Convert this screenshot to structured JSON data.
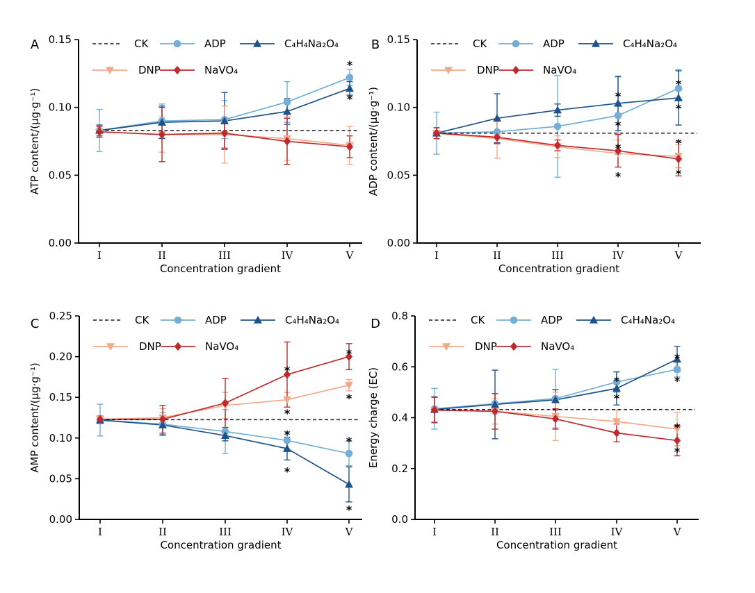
{
  "figure": {
    "background": "#ffffff",
    "axis_color": "#000000",
    "significance_symbol": "*",
    "xlabel": "Concentration gradient"
  },
  "chart_data": [
    {
      "type": "line",
      "panel_label": "A",
      "ylabel": "ATP content/(μg·g⁻¹)",
      "xlabel": "Concentration gradient",
      "categories": [
        "I",
        "II",
        "III",
        "IV",
        "V"
      ],
      "ylim": [
        0,
        0.15
      ],
      "yticks": [
        0,
        0.05,
        0.1,
        0.15
      ],
      "ytick_labels": [
        "0.00",
        "0.05",
        "0.10",
        "0.15"
      ],
      "grid": false,
      "legend_position": "top-left",
      "legend_rows": [
        [
          "CK",
          "ADP",
          "C₄H₄Na₂O₄"
        ],
        [
          "DNP",
          "NaVO₄"
        ]
      ],
      "baseline": {
        "name": "CK",
        "value": 0.083,
        "style": "dashed",
        "color": "#1a1a1a"
      },
      "series": [
        {
          "name": "ADP",
          "color": "#74aed6",
          "marker": "circle",
          "values": [
            0.083,
            0.09,
            0.091,
            0.104,
            0.122
          ],
          "errors": [
            0.0155,
            0.0125,
            0.014,
            0.015,
            0.006
          ]
        },
        {
          "name": "C₄H₄Na₂O₄",
          "color": "#1f5288",
          "marker": "triangle-up",
          "values": [
            0.083,
            0.089,
            0.09,
            0.097,
            0.114
          ],
          "errors": [
            0.004,
            0.012,
            0.021,
            0.0095,
            0.005
          ]
        },
        {
          "name": "DNP",
          "color": "#f4a98a",
          "marker": "triangle-down",
          "values": [
            0.082,
            0.08,
            0.08,
            0.077,
            0.072
          ],
          "errors": [
            0.004,
            0.013,
            0.021,
            0.016,
            0.014
          ]
        },
        {
          "name": "NaVO₄",
          "color": "#bf2a2f",
          "marker": "diamond",
          "values": [
            0.082,
            0.08,
            0.081,
            0.075,
            0.071
          ],
          "errors": [
            0.004,
            0.02,
            0.011,
            0.017,
            0.008
          ]
        }
      ],
      "significance": [
        {
          "x": "V",
          "y": 0.133
        },
        {
          "x": "V",
          "y": 0.108
        }
      ]
    },
    {
      "type": "line",
      "panel_label": "B",
      "ylabel": "ADP content/(μg·g⁻¹)",
      "xlabel": "Concentration gradient",
      "categories": [
        "I",
        "II",
        "III",
        "IV",
        "V"
      ],
      "ylim": [
        0,
        0.15
      ],
      "yticks": [
        0,
        0.05,
        0.1,
        0.15
      ],
      "ytick_labels": [
        "0.00",
        "0.05",
        "0.10",
        "0.15"
      ],
      "grid": false,
      "legend_position": "top-left",
      "legend_rows": [
        [
          "CK",
          "ADP",
          "C₄H₄Na₂O₄"
        ],
        [
          "DNP",
          "NaVO₄"
        ]
      ],
      "baseline": {
        "name": "CK",
        "value": 0.081,
        "style": "dashed",
        "color": "#1a1a1a"
      },
      "series": [
        {
          "name": "ADP",
          "color": "#74aed6",
          "marker": "circle",
          "values": [
            0.081,
            0.082,
            0.086,
            0.094,
            0.114
          ],
          "errors": [
            0.0155,
            0.009,
            0.0375,
            0.0285,
            0.014
          ]
        },
        {
          "name": "C₄H₄Na₂O₄",
          "color": "#1f5288",
          "marker": "triangle-up",
          "values": [
            0.081,
            0.092,
            0.098,
            0.103,
            0.107
          ],
          "errors": [
            0.004,
            0.018,
            0.0045,
            0.02,
            0.02
          ]
        },
        {
          "name": "DNP",
          "color": "#f4a98a",
          "marker": "triangle-down",
          "values": [
            0.081,
            0.077,
            0.071,
            0.066,
            0.064
          ],
          "errors": [
            0.004,
            0.0145,
            0.008,
            0.01,
            0.0085
          ]
        },
        {
          "name": "NaVO₄",
          "color": "#bf2a2f",
          "marker": "diamond",
          "values": [
            0.081,
            0.078,
            0.072,
            0.068,
            0.062
          ],
          "errors": [
            0.004,
            0.0045,
            0.004,
            0.012,
            0.0125
          ]
        }
      ],
      "significance": [
        {
          "x": "IV",
          "y": 0.11
        },
        {
          "x": "IV",
          "y": 0.0885
        },
        {
          "x": "IV",
          "y": 0.072
        },
        {
          "x": "IV",
          "y": 0.051
        },
        {
          "x": "V",
          "y": 0.119
        },
        {
          "x": "V",
          "y": 0.101
        },
        {
          "x": "V",
          "y": 0.0755
        },
        {
          "x": "V",
          "y": 0.053
        }
      ]
    },
    {
      "type": "line",
      "panel_label": "C",
      "ylabel": "AMP content/(μg·g⁻¹)",
      "xlabel": "Concentration gradient",
      "categories": [
        "I",
        "II",
        "III",
        "IV",
        "V"
      ],
      "ylim": [
        0,
        0.25
      ],
      "yticks": [
        0,
        0.05,
        0.1,
        0.15,
        0.2,
        0.25
      ],
      "ytick_labels": [
        "0.00",
        "0.05",
        "0.10",
        "0.15",
        "0.20",
        "0.25"
      ],
      "grid": false,
      "legend_position": "top-left",
      "legend_rows": [
        [
          "CK",
          "ADP",
          "C₄H₄Na₂O₄"
        ],
        [
          "DNP",
          "NaVO₄"
        ]
      ],
      "baseline": {
        "name": "CK",
        "value": 0.1225,
        "style": "dashed",
        "color": "#1a1a1a"
      },
      "series": [
        {
          "name": "ADP",
          "color": "#74aed6",
          "marker": "circle",
          "values": [
            0.122,
            0.117,
            0.108,
            0.097,
            0.081
          ],
          "errors": [
            0.0195,
            0.014,
            0.027,
            0.011,
            0.015
          ]
        },
        {
          "name": "C₄H₄Na₂O₄",
          "color": "#1f5288",
          "marker": "triangle-up",
          "values": [
            0.122,
            0.116,
            0.103,
            0.087,
            0.043
          ],
          "errors": [
            0.004,
            0.012,
            0.0065,
            0.014,
            0.0215
          ]
        },
        {
          "name": "DNP",
          "color": "#f4a98a",
          "marker": "triangle-down",
          "values": [
            0.123,
            0.125,
            0.14,
            0.147,
            0.165
          ],
          "errors": [
            0.004,
            0.011,
            0.016,
            0.009,
            0.007
          ]
        },
        {
          "name": "NaVO₄",
          "color": "#bf2a2f",
          "marker": "diamond",
          "values": [
            0.123,
            0.123,
            0.143,
            0.178,
            0.2
          ],
          "errors": [
            0.004,
            0.017,
            0.03,
            0.04,
            0.016
          ]
        }
      ],
      "significance": [
        {
          "x": "IV",
          "y": 0.186
        },
        {
          "x": "IV",
          "y": 0.133
        },
        {
          "x": "IV",
          "y": 0.107
        },
        {
          "x": "IV",
          "y": 0.062
        },
        {
          "x": "V",
          "y": 0.207
        },
        {
          "x": "V",
          "y": 0.152
        },
        {
          "x": "V",
          "y": 0.099
        },
        {
          "x": "V",
          "y": 0.015
        }
      ]
    },
    {
      "type": "line",
      "panel_label": "D",
      "ylabel": "Energy charge (EC)",
      "xlabel": "Concentration gradient",
      "categories": [
        "I",
        "II",
        "III",
        "IV",
        "V"
      ],
      "ylim": [
        0,
        0.8
      ],
      "yticks": [
        0,
        0.2,
        0.4,
        0.6,
        0.8
      ],
      "ytick_labels": [
        "0.0",
        "0.2",
        "0.4",
        "0.6",
        "0.8"
      ],
      "grid": false,
      "legend_position": "top-left",
      "legend_rows": [
        [
          "CK",
          "ADP",
          "C₄H₄Na₂O₄"
        ],
        [
          "DNP",
          "NaVO₄"
        ]
      ],
      "baseline": {
        "name": "CK",
        "value": 0.432,
        "style": "dashed",
        "color": "#1a1a1a"
      },
      "series": [
        {
          "name": "ADP",
          "color": "#74aed6",
          "marker": "circle",
          "values": [
            0.435,
            0.455,
            0.475,
            0.54,
            0.59
          ],
          "errors": [
            0.08,
            0.04,
            0.115,
            0.04,
            0.03
          ]
        },
        {
          "name": "C₄H₄Na₂O₄",
          "color": "#1f5288",
          "marker": "triangle-up",
          "values": [
            0.432,
            0.452,
            0.47,
            0.515,
            0.63
          ],
          "errors": [
            0.05,
            0.135,
            0.04,
            0.065,
            0.05
          ]
        },
        {
          "name": "DNP",
          "color": "#f4a98a",
          "marker": "triangle-down",
          "values": [
            0.43,
            0.425,
            0.405,
            0.385,
            0.355
          ],
          "errors": [
            0.05,
            0.05,
            0.095,
            0.045,
            0.065
          ]
        },
        {
          "name": "NaVO₄",
          "color": "#bf2a2f",
          "marker": "diamond",
          "values": [
            0.43,
            0.425,
            0.395,
            0.34,
            0.31
          ],
          "errors": [
            0.05,
            0.07,
            0.04,
            0.035,
            0.06
          ]
        }
      ],
      "significance": [
        {
          "x": "IV",
          "y": 0.554
        },
        {
          "x": "IV",
          "y": 0.486
        },
        {
          "x": "V",
          "y": 0.644
        },
        {
          "x": "V",
          "y": 0.554
        },
        {
          "x": "V",
          "y": 0.371
        },
        {
          "x": "V",
          "y": 0.276
        }
      ]
    }
  ]
}
